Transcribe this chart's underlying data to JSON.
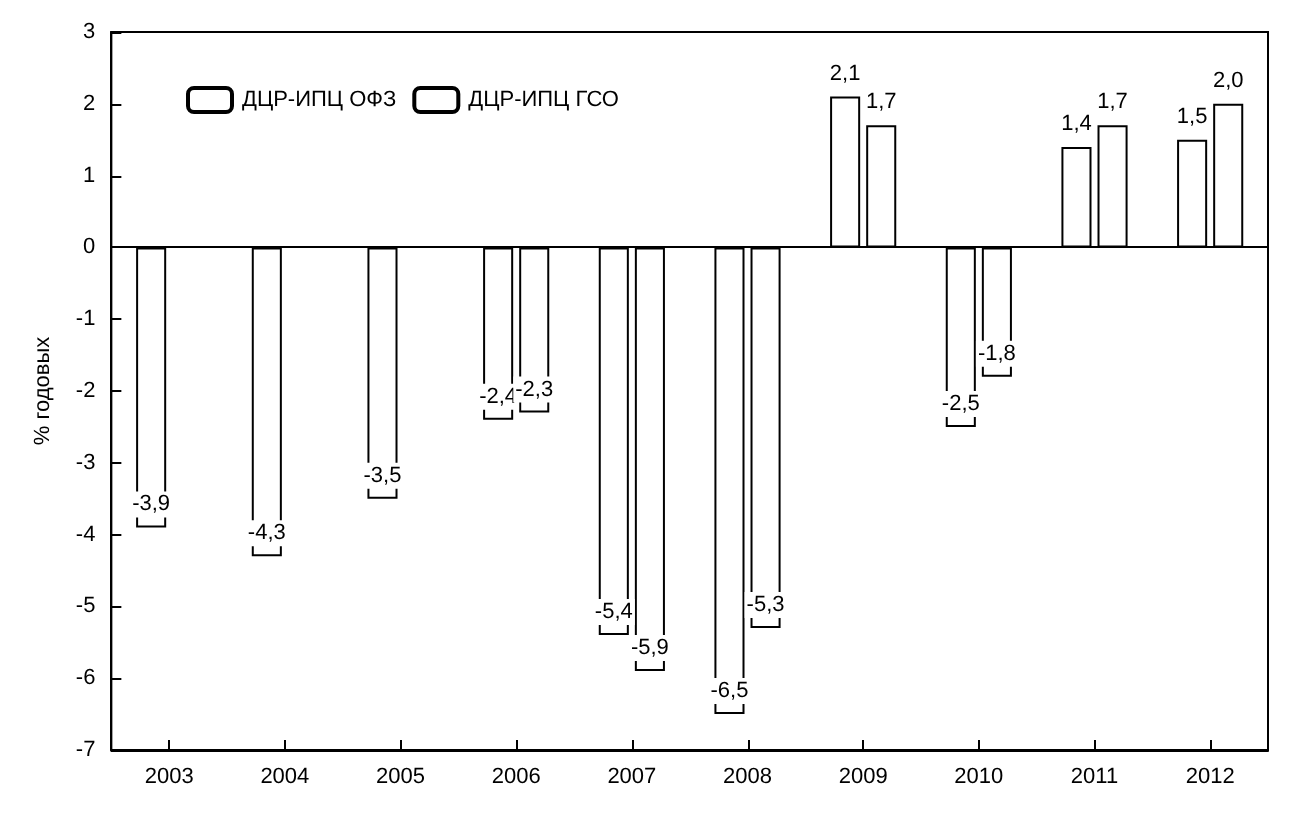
{
  "chart_data": {
    "type": "bar",
    "ylabel": "% годовых",
    "categories": [
      "2003",
      "2004",
      "2005",
      "2006",
      "2007",
      "2008",
      "2009",
      "2010",
      "2011",
      "2012"
    ],
    "series": [
      {
        "name": "ДЦР-ИПЦ ОФЗ",
        "color": "#ffffff",
        "values": [
          -3.9,
          -4.3,
          -3.5,
          -2.4,
          -5.4,
          -6.5,
          2.1,
          -2.5,
          1.4,
          1.5
        ],
        "value_labels": [
          "-3,9",
          "-4,3",
          "-3,5",
          "-2,4",
          "-5,4",
          "-6,5",
          "2,1",
          "-2,5",
          "1,4",
          "1,5"
        ]
      },
      {
        "name": "ДЦР-ИПЦ ГСО",
        "color": "#ffffff",
        "values": [
          null,
          null,
          null,
          -2.3,
          -5.9,
          -5.3,
          1.7,
          -1.8,
          1.7,
          2.0
        ],
        "value_labels": [
          null,
          null,
          null,
          "-2,3",
          "-5,9",
          "-5,3",
          "1,7",
          "-1,8",
          "1,7",
          "2,0"
        ]
      }
    ],
    "ylim": [
      -7,
      3
    ],
    "yticks": [
      -7,
      -6,
      -5,
      -4,
      -3,
      -2,
      -1,
      0,
      1,
      2,
      3
    ],
    "grid": false,
    "ref_lines": [
      {
        "axis": "y",
        "value": 0
      }
    ],
    "legend": "top left"
  }
}
